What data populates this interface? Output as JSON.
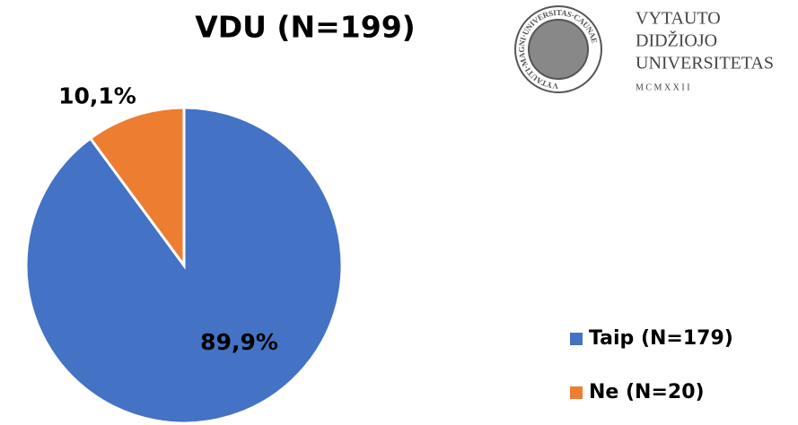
{
  "chart_data": {
    "type": "pie",
    "title": "VDU (N=199)",
    "categories": [
      "Taip (N=179)",
      "Ne (N=20)"
    ],
    "values": [
      89.9,
      10.1
    ],
    "value_labels": [
      "89,9%",
      "10,1%"
    ],
    "colors": [
      "#4472c4",
      "#ed7d31"
    ],
    "legend": "bottom-right"
  },
  "logo": {
    "seal_text": "VYTAUTI·MAGNI·UNIVERSITAS·CAUNAE",
    "lines": [
      "VYTAUTO",
      "DIDŽIOJO",
      "UNIVERSITETAS"
    ],
    "year": "M C M X X I I"
  }
}
